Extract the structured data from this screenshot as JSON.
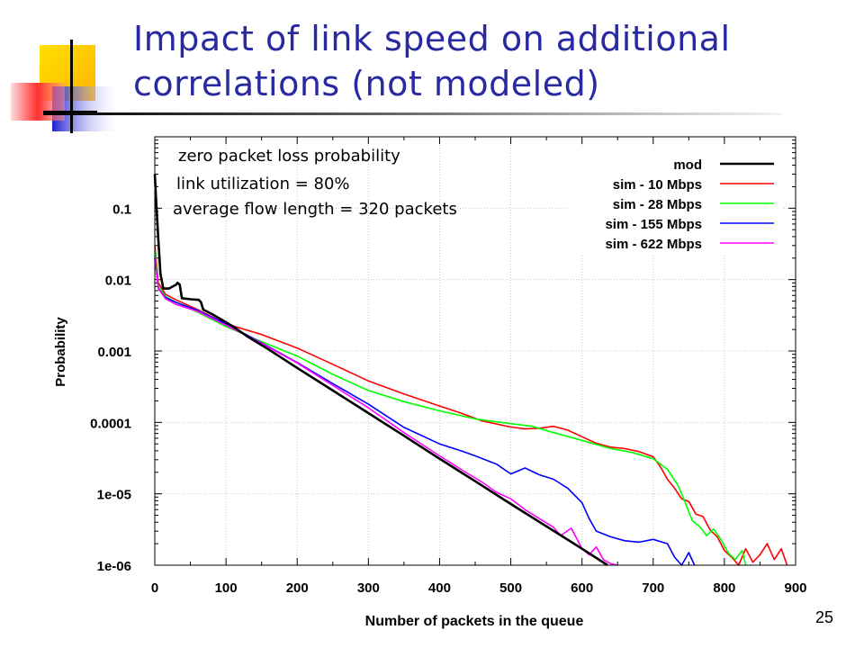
{
  "slide": {
    "title": "Impact of link speed on additional correlations (not modeled)",
    "number": "25"
  },
  "chart_data": {
    "type": "line",
    "xlabel": "Number of packets in the queue",
    "ylabel": "Probability",
    "xlim": [
      0,
      900
    ],
    "ylim": [
      1e-06,
      1
    ],
    "yscale": "log",
    "grid": true,
    "x_ticks": [
      "0",
      "100",
      "200",
      "300",
      "400",
      "500",
      "600",
      "700",
      "800",
      "900"
    ],
    "y_ticks": [
      {
        "value": 0.1,
        "label": "0.1"
      },
      {
        "value": 0.01,
        "label": "0.01"
      },
      {
        "value": 0.001,
        "label": "0.001"
      },
      {
        "value": 0.0001,
        "label": "0.0001"
      },
      {
        "value": 1e-05,
        "label": "1e-05"
      },
      {
        "value": 1e-06,
        "label": "1e-06"
      }
    ],
    "legend_position": "top-right",
    "annotations": [
      "zero packet loss probability",
      "link utilization = 80%",
      "average flow length = 320 packets"
    ],
    "series": [
      {
        "name": "mod",
        "color": "#000000",
        "points": [
          [
            0,
            0.3
          ],
          [
            2,
            0.12
          ],
          [
            5,
            0.035
          ],
          [
            8,
            0.012
          ],
          [
            12,
            0.0075
          ],
          [
            20,
            0.0075
          ],
          [
            25,
            0.008
          ],
          [
            30,
            0.0085
          ],
          [
            32,
            0.009
          ],
          [
            35,
            0.0085
          ],
          [
            38,
            0.0055
          ],
          [
            50,
            0.0053
          ],
          [
            62,
            0.0052
          ],
          [
            65,
            0.0048
          ],
          [
            68,
            0.0038
          ],
          [
            80,
            0.0033
          ],
          [
            95,
            0.0027
          ],
          [
            110,
            0.0022
          ],
          [
            130,
            0.0016
          ],
          [
            160,
            0.00105
          ],
          [
            200,
            0.00058
          ],
          [
            250,
            0.00028
          ],
          [
            300,
            0.000135
          ],
          [
            350,
            6.5e-05
          ],
          [
            400,
            3.1e-05
          ],
          [
            450,
            1.5e-05
          ],
          [
            500,
            7.2e-06
          ],
          [
            550,
            3.5e-06
          ],
          [
            600,
            1.7e-06
          ],
          [
            636,
            1e-06
          ]
        ]
      },
      {
        "name": "sim - 10 Mbps",
        "color": "#ff0000",
        "points": [
          [
            0,
            0.03
          ],
          [
            5,
            0.009
          ],
          [
            15,
            0.0062
          ],
          [
            30,
            0.0052
          ],
          [
            60,
            0.0038
          ],
          [
            100,
            0.0024
          ],
          [
            150,
            0.0017
          ],
          [
            200,
            0.0011
          ],
          [
            250,
            0.00065
          ],
          [
            300,
            0.00038
          ],
          [
            350,
            0.00025
          ],
          [
            400,
            0.00017
          ],
          [
            430,
            0.000135
          ],
          [
            460,
            0.000105
          ],
          [
            480,
            9.5e-05
          ],
          [
            500,
            8.6e-05
          ],
          [
            520,
            8.1e-05
          ],
          [
            540,
            8.3e-05
          ],
          [
            560,
            8.8e-05
          ],
          [
            580,
            7.8e-05
          ],
          [
            600,
            6.3e-05
          ],
          [
            620,
            5.1e-05
          ],
          [
            640,
            4.5e-05
          ],
          [
            660,
            4.3e-05
          ],
          [
            680,
            3.9e-05
          ],
          [
            700,
            3.3e-05
          ],
          [
            710,
            2.4e-05
          ],
          [
            720,
            1.6e-05
          ],
          [
            730,
            1.2e-05
          ],
          [
            740,
            8.5e-06
          ],
          [
            750,
            7.8e-06
          ],
          [
            760,
            5.2e-06
          ],
          [
            770,
            4.8e-06
          ],
          [
            780,
            3.1e-06
          ],
          [
            790,
            2.5e-06
          ],
          [
            800,
            1.6e-06
          ],
          [
            810,
            1.3e-06
          ],
          [
            820,
            1e-06
          ],
          [
            830,
            1.7e-06
          ],
          [
            840,
            1.1e-06
          ],
          [
            850,
            1.4e-06
          ],
          [
            860,
            2e-06
          ],
          [
            870,
            1.2e-06
          ],
          [
            880,
            1.7e-06
          ],
          [
            888,
            1e-06
          ]
        ]
      },
      {
        "name": "sim - 28 Mbps",
        "color": "#00ff00",
        "points": [
          [
            0,
            0.025
          ],
          [
            5,
            0.008
          ],
          [
            15,
            0.0058
          ],
          [
            30,
            0.0048
          ],
          [
            60,
            0.0035
          ],
          [
            100,
            0.0022
          ],
          [
            150,
            0.00135
          ],
          [
            200,
            0.00085
          ],
          [
            250,
            0.00047
          ],
          [
            300,
            0.00028
          ],
          [
            350,
            0.000195
          ],
          [
            400,
            0.000145
          ],
          [
            450,
            0.000112
          ],
          [
            480,
            0.000102
          ],
          [
            500,
            9.6e-05
          ],
          [
            530,
            8.8e-05
          ],
          [
            560,
            7.2e-05
          ],
          [
            600,
            5.6e-05
          ],
          [
            640,
            4.3e-05
          ],
          [
            670,
            3.8e-05
          ],
          [
            700,
            3.1e-05
          ],
          [
            720,
            2.2e-05
          ],
          [
            735,
            1.3e-05
          ],
          [
            745,
            7.5e-06
          ],
          [
            755,
            4.2e-06
          ],
          [
            765,
            3.5e-06
          ],
          [
            775,
            2.6e-06
          ],
          [
            785,
            3.2e-06
          ],
          [
            795,
            2.3e-06
          ],
          [
            805,
            1.5e-06
          ],
          [
            815,
            1.2e-06
          ],
          [
            825,
            1.6e-06
          ],
          [
            830,
            1e-06
          ]
        ]
      },
      {
        "name": "sim - 155 Mbps",
        "color": "#0000ff",
        "points": [
          [
            0,
            0.02
          ],
          [
            5,
            0.0075
          ],
          [
            15,
            0.0056
          ],
          [
            30,
            0.0048
          ],
          [
            60,
            0.0037
          ],
          [
            100,
            0.0024
          ],
          [
            150,
            0.0013
          ],
          [
            200,
            0.00069
          ],
          [
            250,
            0.00035
          ],
          [
            300,
            0.00018
          ],
          [
            350,
            8.5e-05
          ],
          [
            400,
            5e-05
          ],
          [
            430,
            4e-05
          ],
          [
            450,
            3.4e-05
          ],
          [
            480,
            2.6e-05
          ],
          [
            500,
            1.9e-05
          ],
          [
            520,
            2.3e-05
          ],
          [
            540,
            1.85e-05
          ],
          [
            560,
            1.6e-05
          ],
          [
            580,
            1.2e-05
          ],
          [
            600,
            7.5e-06
          ],
          [
            610,
            4.5e-06
          ],
          [
            620,
            3e-06
          ],
          [
            640,
            2.5e-06
          ],
          [
            660,
            2.2e-06
          ],
          [
            680,
            2.1e-06
          ],
          [
            700,
            2.3e-06
          ],
          [
            720,
            2e-06
          ],
          [
            730,
            1.3e-06
          ],
          [
            740,
            1e-06
          ],
          [
            750,
            1.5e-06
          ],
          [
            758,
            1e-06
          ]
        ]
      },
      {
        "name": "sim - 622 Mbps",
        "color": "#ff00ff",
        "points": [
          [
            0,
            0.02
          ],
          [
            5,
            0.0075
          ],
          [
            15,
            0.0054
          ],
          [
            30,
            0.0045
          ],
          [
            60,
            0.0036
          ],
          [
            100,
            0.0023
          ],
          [
            150,
            0.00128
          ],
          [
            200,
            0.00068
          ],
          [
            250,
            0.00033
          ],
          [
            300,
            0.00016
          ],
          [
            350,
            7.2e-05
          ],
          [
            400,
            3.4e-05
          ],
          [
            430,
            2.2e-05
          ],
          [
            460,
            1.45e-05
          ],
          [
            480,
            1.05e-05
          ],
          [
            500,
            8.5e-06
          ],
          [
            520,
            6e-06
          ],
          [
            540,
            4.5e-06
          ],
          [
            560,
            3.4e-06
          ],
          [
            570,
            2.6e-06
          ],
          [
            585,
            3.3e-06
          ],
          [
            600,
            1.7e-06
          ],
          [
            610,
            1.4e-06
          ],
          [
            620,
            1.8e-06
          ],
          [
            630,
            1.2e-06
          ],
          [
            640,
            1.05e-06
          ],
          [
            650,
            1e-06
          ]
        ]
      }
    ]
  }
}
